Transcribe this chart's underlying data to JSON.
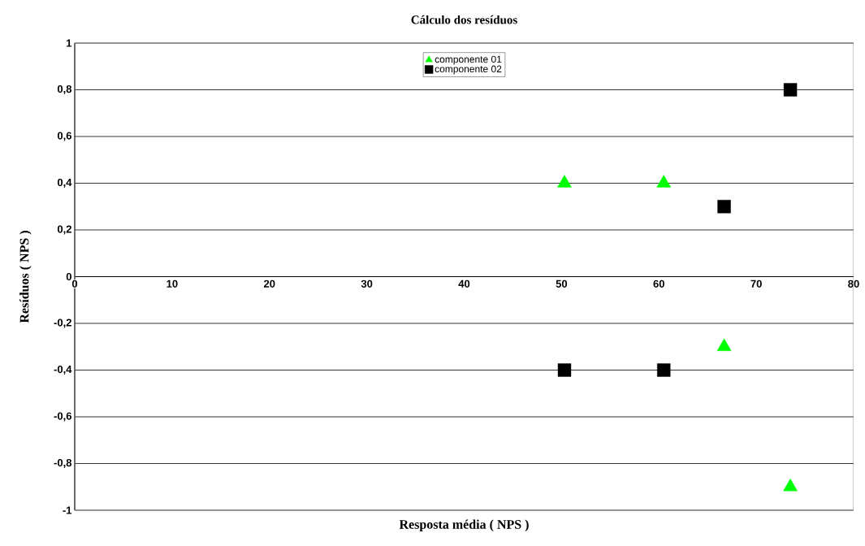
{
  "chart_data": {
    "type": "scatter",
    "title": "Cálculo dos resíduos",
    "xlabel": "Resposta média ( NPS )",
    "ylabel": "Resíduos ( NPS )",
    "series": [
      {
        "name": "componente 01",
        "color": "#00ff00",
        "marker": "triangle",
        "x": [
          50.3,
          60.5,
          66.7,
          73.5
        ],
        "values": [
          0.4,
          0.4,
          -0.3,
          -0.9
        ]
      },
      {
        "name": "componente 02",
        "color": "#000000",
        "marker": "square",
        "x": [
          50.3,
          60.5,
          66.7,
          73.5
        ],
        "values": [
          -0.4,
          -0.4,
          0.3,
          0.8
        ]
      }
    ],
    "xlim": [
      0,
      80
    ],
    "ylim": [
      -1,
      1
    ],
    "xticks": [
      0,
      10,
      20,
      30,
      40,
      50,
      60,
      70,
      80
    ],
    "yticks": [
      {
        "value": -1,
        "label": "-1"
      },
      {
        "value": -0.8,
        "label": "-0,8"
      },
      {
        "value": -0.6,
        "label": "-0,6"
      },
      {
        "value": -0.4,
        "label": "-0,4"
      },
      {
        "value": -0.2,
        "label": "-0,2"
      },
      0,
      {
        "value": 0.2,
        "label": "0,2"
      },
      {
        "value": 0.4,
        "label": "0,4"
      },
      {
        "value": 0.6,
        "label": "0,6"
      },
      {
        "value": 0.8,
        "label": "0,8"
      },
      {
        "value": 1,
        "label": "1"
      }
    ],
    "grid": "y",
    "legend": "top"
  }
}
